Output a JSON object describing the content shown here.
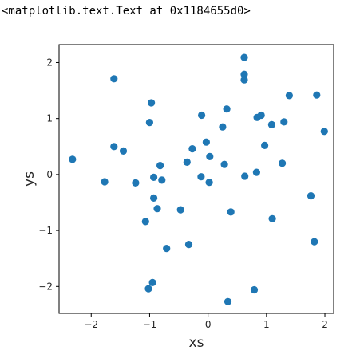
{
  "output_repr": "<matplotlib.text.Text at 0x1184655d0>",
  "chart_data": {
    "type": "scatter",
    "xlabel": "xs",
    "ylabel": "ys",
    "xlim": [
      -2.55,
      2.15
    ],
    "ylim": [
      -2.48,
      2.32
    ],
    "xticks": [
      -2,
      -1,
      0,
      1,
      2
    ],
    "xtick_labels": [
      "−2",
      "−1",
      "0",
      "1",
      "2"
    ],
    "yticks": [
      -2,
      -1,
      0,
      1,
      2
    ],
    "ytick_labels": [
      "−2",
      "−1",
      "0",
      "1",
      "2"
    ],
    "grid": false,
    "marker_color": "#1f77b4",
    "points": [
      {
        "x": -2.32,
        "y": 0.27
      },
      {
        "x": -1.77,
        "y": -0.13
      },
      {
        "x": -1.61,
        "y": 1.71
      },
      {
        "x": -1.61,
        "y": 0.5
      },
      {
        "x": -1.45,
        "y": 0.42
      },
      {
        "x": -1.24,
        "y": -0.15
      },
      {
        "x": -1.07,
        "y": -0.84
      },
      {
        "x": -1.02,
        "y": -2.04
      },
      {
        "x": -1.0,
        "y": 0.93
      },
      {
        "x": -0.97,
        "y": 1.28
      },
      {
        "x": -0.95,
        "y": -1.93
      },
      {
        "x": -0.93,
        "y": -0.42
      },
      {
        "x": -0.93,
        "y": -0.05
      },
      {
        "x": -0.87,
        "y": -0.61
      },
      {
        "x": -0.82,
        "y": 0.16
      },
      {
        "x": -0.79,
        "y": -0.1
      },
      {
        "x": -0.71,
        "y": -1.32
      },
      {
        "x": -0.47,
        "y": -0.63
      },
      {
        "x": -0.36,
        "y": 0.22
      },
      {
        "x": -0.33,
        "y": -1.25
      },
      {
        "x": -0.27,
        "y": 0.46
      },
      {
        "x": -0.12,
        "y": -0.04
      },
      {
        "x": -0.11,
        "y": 1.06
      },
      {
        "x": -0.03,
        "y": 0.58
      },
      {
        "x": 0.02,
        "y": -0.14
      },
      {
        "x": 0.03,
        "y": 0.32
      },
      {
        "x": 0.25,
        "y": 0.85
      },
      {
        "x": 0.28,
        "y": 0.18
      },
      {
        "x": 0.32,
        "y": 1.17
      },
      {
        "x": 0.34,
        "y": -2.27
      },
      {
        "x": 0.39,
        "y": -0.67
      },
      {
        "x": 0.62,
        "y": 2.09
      },
      {
        "x": 0.62,
        "y": 1.79
      },
      {
        "x": 0.62,
        "y": 1.69
      },
      {
        "x": 0.63,
        "y": -0.03
      },
      {
        "x": 0.79,
        "y": -2.06
      },
      {
        "x": 0.83,
        "y": 0.04
      },
      {
        "x": 0.84,
        "y": 1.02
      },
      {
        "x": 0.91,
        "y": 1.06
      },
      {
        "x": 0.97,
        "y": 0.52
      },
      {
        "x": 1.09,
        "y": 0.89
      },
      {
        "x": 1.1,
        "y": -0.79
      },
      {
        "x": 1.27,
        "y": 0.2
      },
      {
        "x": 1.3,
        "y": 0.94
      },
      {
        "x": 1.39,
        "y": 1.41
      },
      {
        "x": 1.76,
        "y": -0.38
      },
      {
        "x": 1.82,
        "y": -1.2
      },
      {
        "x": 1.86,
        "y": 1.42
      },
      {
        "x": 1.99,
        "y": 0.77
      }
    ]
  }
}
